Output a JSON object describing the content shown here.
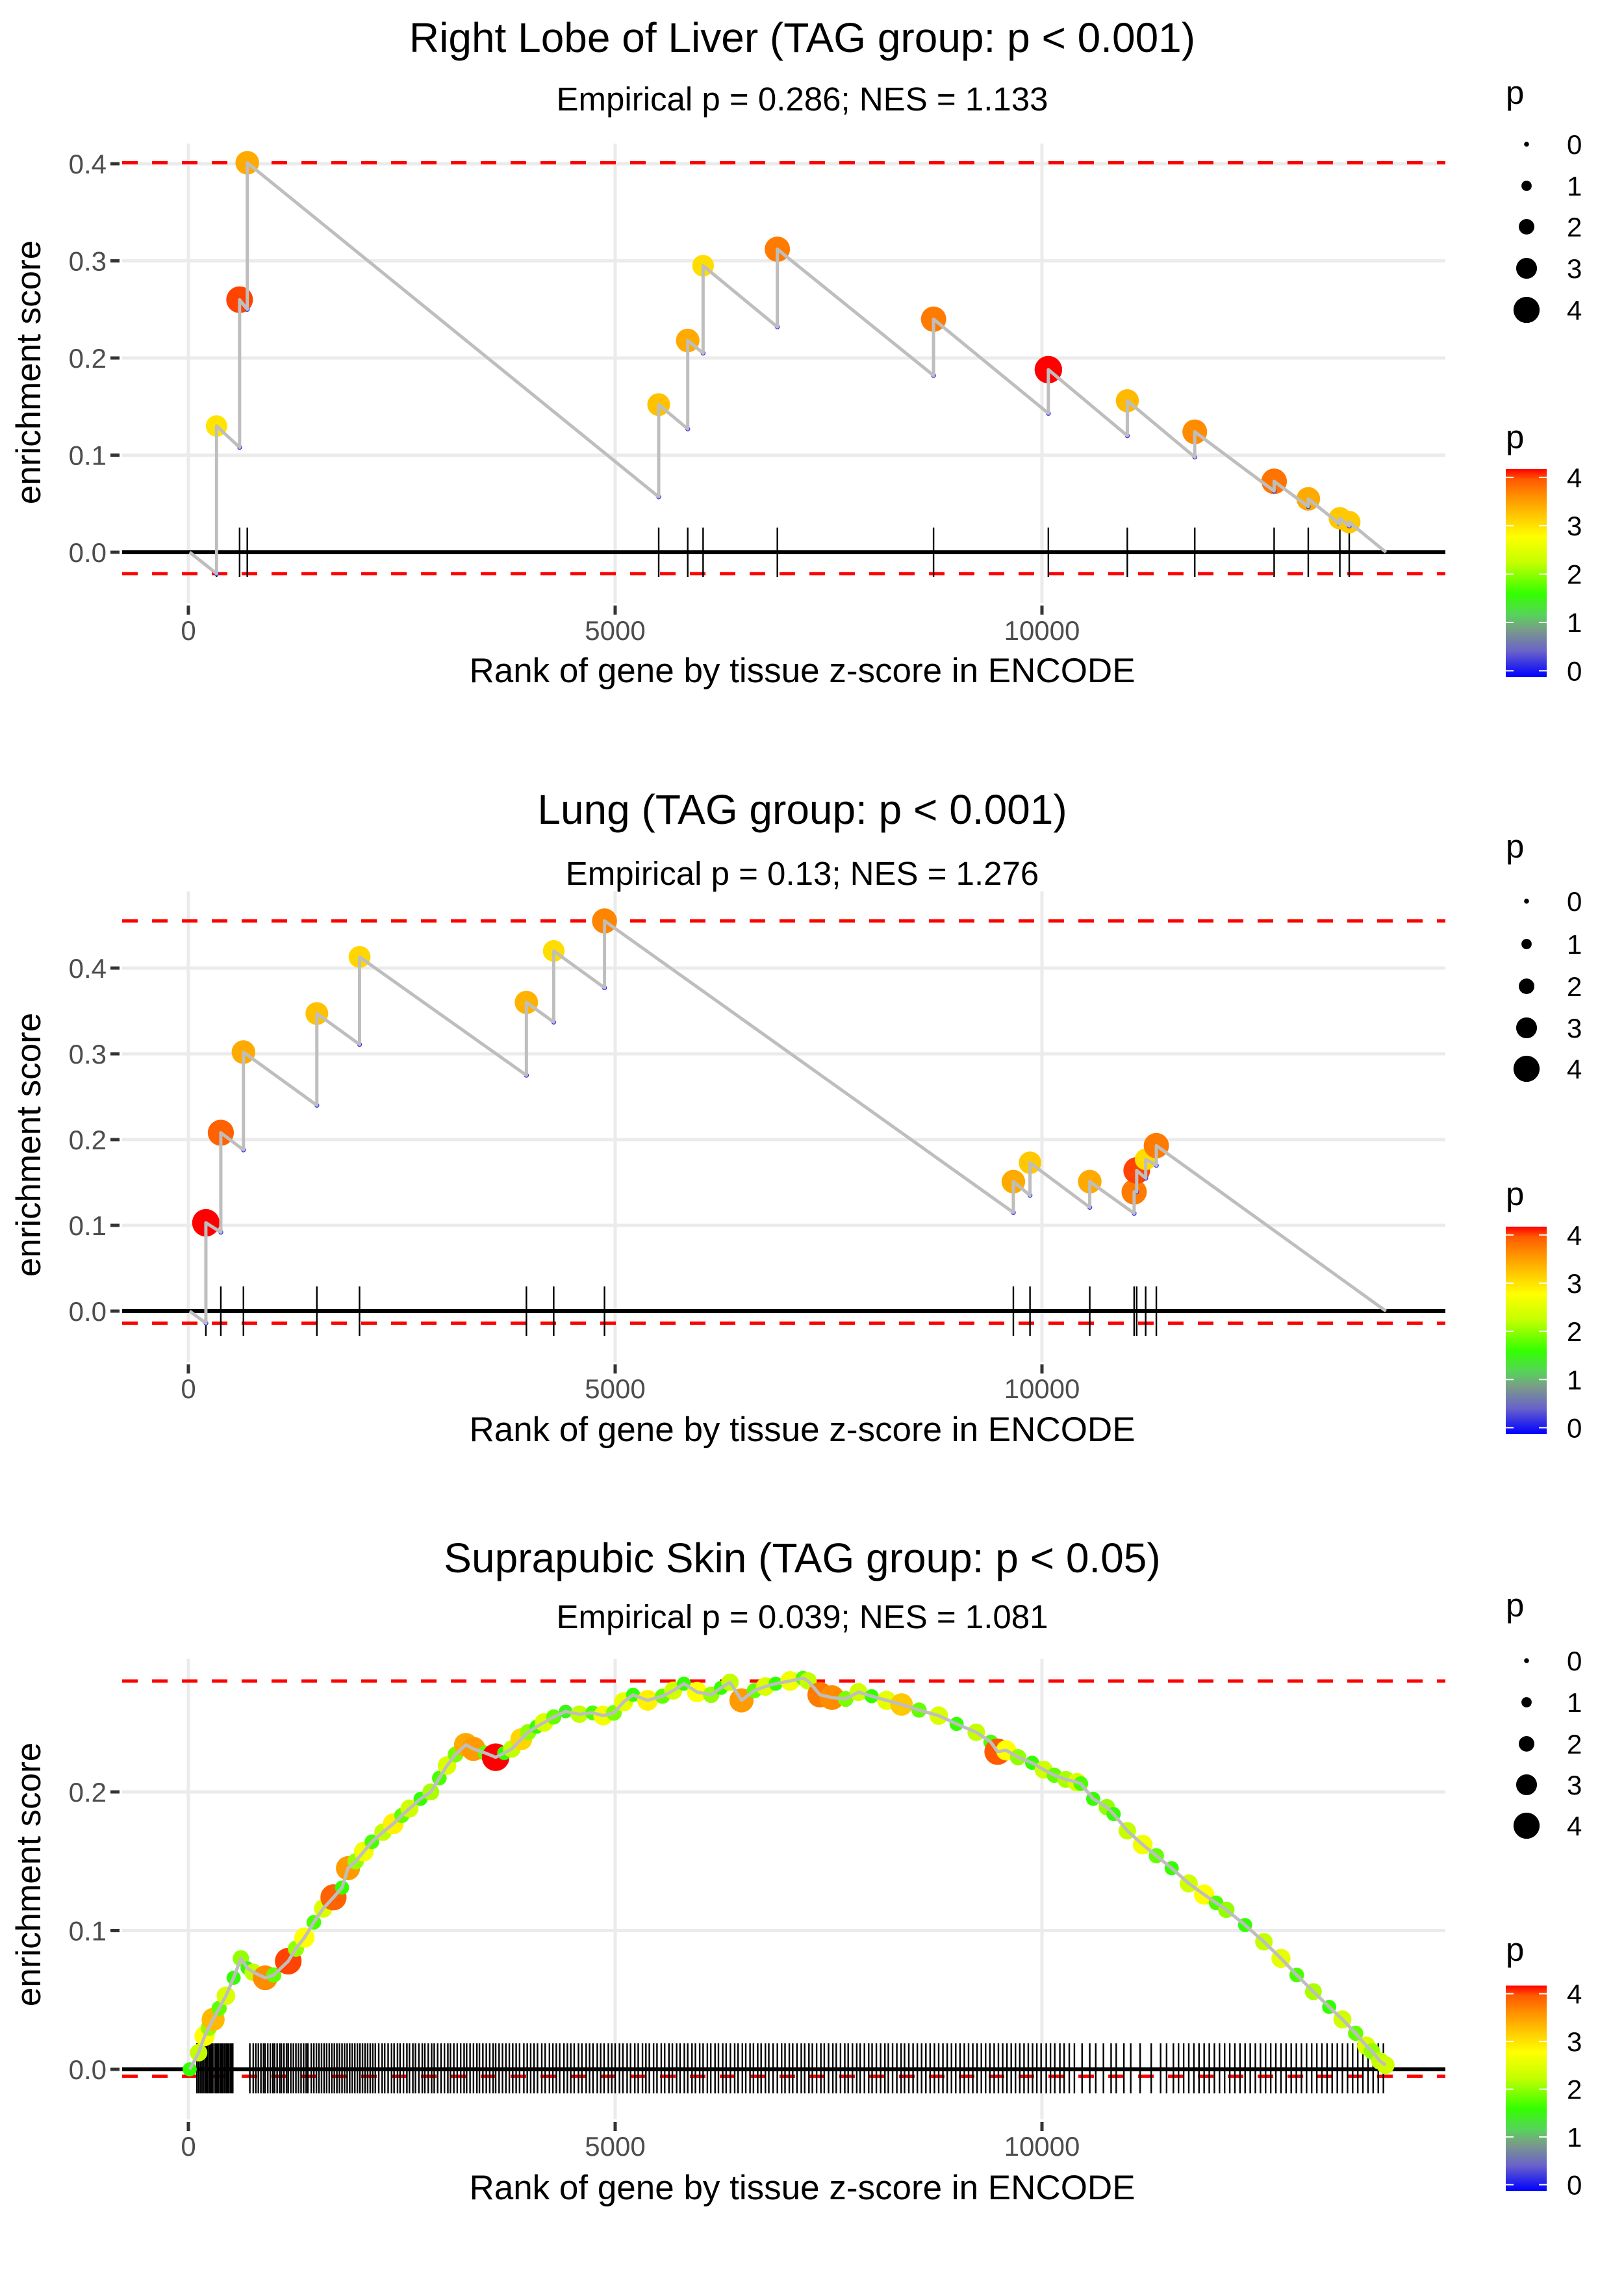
{
  "legend_shared": {
    "size_legend_title": "p",
    "size_legend_values": [
      "0",
      "1",
      "2",
      "3",
      "4"
    ],
    "color_legend_title": "p",
    "color_legend_values": [
      "4",
      "3",
      "2",
      "1",
      "0"
    ],
    "color_scale": [
      {
        "p": 0,
        "color": "#0000ff"
      },
      {
        "p": 0.5,
        "color": "#6a63c9"
      },
      {
        "p": 0.9,
        "color": "#7a9a8a"
      },
      {
        "p": 1.2,
        "color": "#57d35a"
      },
      {
        "p": 1.6,
        "color": "#33ff00"
      },
      {
        "p": 2.2,
        "color": "#c4ff00"
      },
      {
        "p": 2.7,
        "color": "#ffff00"
      },
      {
        "p": 3.1,
        "color": "#ffc800"
      },
      {
        "p": 3.5,
        "color": "#ff8c00"
      },
      {
        "p": 3.8,
        "color": "#ff5a00"
      },
      {
        "p": 4.0,
        "color": "#ff0000"
      }
    ]
  },
  "colors": {
    "bound_line": "#ff0000",
    "es_line": "#bebebe",
    "zero_line": "#000000",
    "grid": "#ebebeb"
  },
  "chart_data": [
    {
      "type": "line",
      "title": "Right Lobe of Liver (TAG group: p < 0.001)",
      "subtitle": "Empirical p = 0.286; NES = 1.133",
      "xlabel": "Rank of gene by tissue z-score in ENCODE",
      "ylabel": "enrichment score",
      "x_ticks": [
        "0",
        "5000",
        "10000"
      ],
      "x_tick_values": [
        0,
        5000,
        10000
      ],
      "y_ticks": [
        "0.0",
        "0.1",
        "0.2",
        "0.3",
        "0.4"
      ],
      "y_tick_values": [
        0,
        0.1,
        0.2,
        0.3,
        0.4
      ],
      "xlim": [
        -1200,
        14800
      ],
      "ylim": [
        -0.045,
        0.43
      ],
      "grid": true,
      "legend": "right",
      "max_es": 0.401,
      "min_es": -0.022,
      "start": [
        15,
        0
      ],
      "end": [
        14030,
        0
      ],
      "genes": [
        {
          "rank": 330,
          "es_before": -0.022,
          "es": 0.13,
          "p": 2.9
        },
        {
          "rank": 600,
          "es_before": 0.108,
          "es": 0.26,
          "p": 3.85
        },
        {
          "rank": 690,
          "es_before": 0.25,
          "es": 0.401,
          "p": 3.3
        },
        {
          "rank": 5510,
          "es_before": 0.057,
          "es": 0.152,
          "p": 3.15
        },
        {
          "rank": 5850,
          "es_before": 0.127,
          "es": 0.218,
          "p": 3.3
        },
        {
          "rank": 6030,
          "es_before": 0.205,
          "es": 0.295,
          "p": 2.95
        },
        {
          "rank": 6900,
          "es_before": 0.232,
          "es": 0.312,
          "p": 3.6
        },
        {
          "rank": 8730,
          "es_before": 0.182,
          "es": 0.24,
          "p": 3.6
        },
        {
          "rank": 10075,
          "es_before": 0.143,
          "es": 0.188,
          "p": 4.0
        },
        {
          "rank": 11000,
          "es_before": 0.12,
          "es": 0.156,
          "p": 3.2
        },
        {
          "rank": 11790,
          "es_before": 0.098,
          "es": 0.124,
          "p": 3.5
        },
        {
          "rank": 12720,
          "es_before": 0.063,
          "es": 0.073,
          "p": 3.65
        },
        {
          "rank": 13120,
          "es_before": 0.047,
          "es": 0.055,
          "p": 3.3
        },
        {
          "rank": 13490,
          "es_before": 0.029,
          "es": 0.035,
          "p": 3.1
        },
        {
          "rank": 13600,
          "es_before": 0.027,
          "es": 0.031,
          "p": 3.1
        }
      ]
    },
    {
      "type": "line",
      "title": "Lung (TAG group: p < 0.001)",
      "subtitle": "Empirical p = 0.13; NES = 1.276",
      "xlabel": "Rank of gene by tissue z-score in ENCODE",
      "ylabel": "enrichment score",
      "x_ticks": [
        "0",
        "5000",
        "10000"
      ],
      "x_tick_values": [
        0,
        5000,
        10000
      ],
      "y_ticks": [
        "0.0",
        "0.1",
        "0.2",
        "0.3",
        "0.4"
      ],
      "y_tick_values": [
        0,
        0.1,
        0.2,
        0.3,
        0.4
      ],
      "xlim": [
        -1200,
        14800
      ],
      "ylim": [
        -0.04,
        0.49
      ],
      "grid": true,
      "legend": "right",
      "max_es": 0.455,
      "min_es": -0.014,
      "start": [
        15,
        0
      ],
      "end": [
        14030,
        0
      ],
      "genes": [
        {
          "rank": 205,
          "es_before": -0.014,
          "es": 0.103,
          "p": 4.0
        },
        {
          "rank": 380,
          "es_before": 0.092,
          "es": 0.208,
          "p": 3.75
        },
        {
          "rank": 645,
          "es_before": 0.188,
          "es": 0.302,
          "p": 3.3
        },
        {
          "rank": 1505,
          "es_before": 0.24,
          "es": 0.347,
          "p": 3.15
        },
        {
          "rank": 2005,
          "es_before": 0.311,
          "es": 0.413,
          "p": 3.0
        },
        {
          "rank": 3960,
          "es_before": 0.275,
          "es": 0.36,
          "p": 3.25
        },
        {
          "rank": 4280,
          "es_before": 0.337,
          "es": 0.42,
          "p": 2.95
        },
        {
          "rank": 4875,
          "es_before": 0.377,
          "es": 0.455,
          "p": 3.55
        },
        {
          "rank": 9665,
          "es_before": 0.115,
          "es": 0.151,
          "p": 3.3
        },
        {
          "rank": 9860,
          "es_before": 0.135,
          "es": 0.173,
          "p": 3.1
        },
        {
          "rank": 10560,
          "es_before": 0.121,
          "es": 0.151,
          "p": 3.3
        },
        {
          "rank": 11080,
          "es_before": 0.114,
          "es": 0.139,
          "p": 3.6
        },
        {
          "rank": 11110,
          "es_before": 0.139,
          "es": 0.164,
          "p": 3.85
        },
        {
          "rank": 11215,
          "es_before": 0.155,
          "es": 0.177,
          "p": 2.95
        },
        {
          "rank": 11340,
          "es_before": 0.17,
          "es": 0.193,
          "p": 3.6
        }
      ]
    },
    {
      "type": "line",
      "title": "Suprapubic Skin (TAG group: p < 0.05)",
      "subtitle": "Empirical p = 0.039; NES = 1.081",
      "xlabel": "Rank of gene by tissue z-score in ENCODE",
      "ylabel": "enrichment score",
      "x_ticks": [
        "0",
        "5000",
        "10000"
      ],
      "x_tick_values": [
        0,
        5000,
        10000
      ],
      "y_ticks": [
        "0.0",
        "0.1",
        "0.2"
      ],
      "y_tick_values": [
        0,
        0.1,
        0.2
      ],
      "xlim": [
        -1200,
        14800
      ],
      "ylim": [
        -0.025,
        0.3
      ],
      "grid": true,
      "legend": "right",
      "max_es": 0.28,
      "min_es": -0.005,
      "points": [
        [
          15,
          0.0,
          1.6
        ],
        [
          120,
          0.012,
          2.2
        ],
        [
          190,
          0.024,
          2.7
        ],
        [
          240,
          0.03,
          2.0
        ],
        [
          290,
          0.036,
          3.2
        ],
        [
          360,
          0.044,
          1.8
        ],
        [
          440,
          0.053,
          2.4
        ],
        [
          530,
          0.066,
          1.6
        ],
        [
          615,
          0.08,
          2.0
        ],
        [
          690,
          0.073,
          1.5
        ],
        [
          760,
          0.07,
          2.2
        ],
        [
          900,
          0.066,
          3.5
        ],
        [
          1000,
          0.068,
          1.8
        ],
        [
          1170,
          0.078,
          3.85
        ],
        [
          1260,
          0.087,
          2.0
        ],
        [
          1360,
          0.095,
          2.7
        ],
        [
          1470,
          0.106,
          1.7
        ],
        [
          1580,
          0.116,
          2.4
        ],
        [
          1700,
          0.124,
          3.75
        ],
        [
          1800,
          0.131,
          1.6
        ],
        [
          1870,
          0.145,
          3.4
        ],
        [
          1960,
          0.15,
          2.0
        ],
        [
          2055,
          0.157,
          2.6
        ],
        [
          2150,
          0.164,
          1.7
        ],
        [
          2280,
          0.171,
          2.2
        ],
        [
          2400,
          0.177,
          2.8
        ],
        [
          2500,
          0.183,
          1.8
        ],
        [
          2590,
          0.188,
          2.3
        ],
        [
          2720,
          0.195,
          1.6
        ],
        [
          2840,
          0.2,
          2.1
        ],
        [
          2940,
          0.21,
          1.7
        ],
        [
          3030,
          0.219,
          2.4
        ],
        [
          3130,
          0.227,
          1.9
        ],
        [
          3250,
          0.234,
          3.3
        ],
        [
          3340,
          0.231,
          3.4
        ],
        [
          3480,
          0.228,
          1.8
        ],
        [
          3600,
          0.225,
          4.0
        ],
        [
          3700,
          0.228,
          1.6
        ],
        [
          3790,
          0.231,
          2.2
        ],
        [
          3900,
          0.238,
          3.0
        ],
        [
          3980,
          0.243,
          2.0
        ],
        [
          4080,
          0.247,
          1.6
        ],
        [
          4165,
          0.25,
          2.4
        ],
        [
          4280,
          0.254,
          1.8
        ],
        [
          4420,
          0.258,
          1.5
        ],
        [
          4580,
          0.256,
          2.2
        ],
        [
          4735,
          0.257,
          1.7
        ],
        [
          4860,
          0.255,
          2.6
        ],
        [
          4985,
          0.257,
          1.9
        ],
        [
          5100,
          0.265,
          2.5
        ],
        [
          5210,
          0.27,
          1.6
        ],
        [
          5380,
          0.266,
          2.8
        ],
        [
          5555,
          0.269,
          1.8
        ],
        [
          5680,
          0.273,
          2.3
        ],
        [
          5805,
          0.278,
          1.6
        ],
        [
          5960,
          0.272,
          2.7
        ],
        [
          6125,
          0.27,
          2.0
        ],
        [
          6240,
          0.275,
          1.6
        ],
        [
          6345,
          0.279,
          2.2
        ],
        [
          6480,
          0.266,
          3.4
        ],
        [
          6630,
          0.273,
          1.8
        ],
        [
          6760,
          0.276,
          2.4
        ],
        [
          6880,
          0.278,
          1.6
        ],
        [
          7050,
          0.28,
          2.6
        ],
        [
          7200,
          0.282,
          1.7
        ],
        [
          7260,
          0.28,
          2.2
        ],
        [
          7400,
          0.27,
          3.6
        ],
        [
          7540,
          0.268,
          3.5
        ],
        [
          7700,
          0.267,
          1.9
        ],
        [
          7850,
          0.272,
          2.3
        ],
        [
          8005,
          0.269,
          1.6
        ],
        [
          8180,
          0.266,
          2.5
        ],
        [
          8355,
          0.263,
          3.1
        ],
        [
          8560,
          0.259,
          1.8
        ],
        [
          8790,
          0.255,
          2.4
        ],
        [
          9000,
          0.249,
          1.6
        ],
        [
          9230,
          0.243,
          2.2
        ],
        [
          9400,
          0.236,
          1.7
        ],
        [
          9480,
          0.229,
          3.8
        ],
        [
          9580,
          0.23,
          2.7
        ],
        [
          9720,
          0.225,
          2.0
        ],
        [
          9885,
          0.221,
          1.6
        ],
        [
          10020,
          0.216,
          2.3
        ],
        [
          10145,
          0.212,
          1.8
        ],
        [
          10280,
          0.209,
          2.1
        ],
        [
          10410,
          0.207,
          2.4
        ],
        [
          10455,
          0.206,
          1.7
        ],
        [
          10600,
          0.195,
          1.6
        ],
        [
          10760,
          0.189,
          2.0
        ],
        [
          10840,
          0.184,
          1.6
        ],
        [
          11000,
          0.172,
          2.2
        ],
        [
          11180,
          0.162,
          2.6
        ],
        [
          11340,
          0.154,
          1.8
        ],
        [
          11520,
          0.145,
          1.6
        ],
        [
          11720,
          0.134,
          2.3
        ],
        [
          11900,
          0.126,
          2.7
        ],
        [
          12040,
          0.12,
          1.7
        ],
        [
          12160,
          0.115,
          2.0
        ],
        [
          12380,
          0.104,
          1.6
        ],
        [
          12600,
          0.092,
          2.2
        ],
        [
          12800,
          0.08,
          2.5
        ],
        [
          12985,
          0.068,
          1.7
        ],
        [
          13180,
          0.056,
          2.1
        ],
        [
          13365,
          0.045,
          1.6
        ],
        [
          13520,
          0.036,
          2.3
        ],
        [
          13675,
          0.026,
          1.8
        ],
        [
          13800,
          0.017,
          2.4
        ],
        [
          13865,
          0.013,
          2.0
        ],
        [
          13960,
          0.006,
          2.2
        ],
        [
          14025,
          0.003,
          2.3
        ]
      ],
      "gene_ranks_description": "dense barcode of gene ranks from ~100 to ~14000",
      "gene_ranks": [
        100,
        120,
        140,
        160,
        180,
        200,
        215,
        230,
        250,
        265,
        280,
        300,
        320,
        335,
        350,
        370,
        385,
        400,
        420,
        440,
        455,
        470,
        490,
        505,
        520,
        720,
        760,
        790,
        820,
        850,
        880,
        900,
        930,
        960,
        990,
        1010,
        1040,
        1070,
        1090,
        1120,
        1150,
        1170,
        1200,
        1230,
        1260,
        1290,
        1320,
        1350,
        1380,
        1400,
        1440,
        1470,
        1500,
        1530,
        1560,
        1590,
        1620,
        1650,
        1680,
        1710,
        1740,
        1770,
        1800,
        1830,
        1860,
        1890,
        1920,
        1950,
        1980,
        2010,
        2040,
        2070,
        2100,
        2130,
        2160,
        2190,
        2230,
        2270,
        2300,
        2340,
        2380,
        2410,
        2450,
        2480,
        2520,
        2560,
        2590,
        2630,
        2660,
        2700,
        2740,
        2770,
        2810,
        2850,
        2880,
        2920,
        2960,
        3000,
        3040,
        3070,
        3110,
        3150,
        3190,
        3230,
        3260,
        3300,
        3340,
        3380,
        3410,
        3450,
        3490,
        3530,
        3570,
        3600,
        3640,
        3680,
        3720,
        3760,
        3800,
        3840,
        3880,
        3930,
        3970,
        4010,
        4050,
        4090,
        4140,
        4180,
        4230,
        4270,
        4310,
        4350,
        4400,
        4440,
        4480,
        4520,
        4570,
        4610,
        4660,
        4700,
        4740,
        4790,
        4830,
        4870,
        4920,
        4960,
        5000,
        5050,
        5090,
        5140,
        5180,
        5230,
        5270,
        5320,
        5360,
        5400,
        5450,
        5490,
        5540,
        5580,
        5630,
        5670,
        5720,
        5760,
        5810,
        5850,
        5900,
        5940,
        5990,
        6030,
        6080,
        6120,
        6170,
        6210,
        6260,
        6300,
        6350,
        6400,
        6440,
        6490,
        6530,
        6580,
        6620,
        6670,
        6710,
        6760,
        6800,
        6850,
        6900,
        6950,
        6990,
        7040,
        7080,
        7130,
        7180,
        7220,
        7270,
        7310,
        7360,
        7410,
        7450,
        7500,
        7550,
        7590,
        7640,
        7690,
        7730,
        7780,
        7830,
        7870,
        7920,
        7970,
        8010,
        8060,
        8110,
        8160,
        8200,
        8250,
        8300,
        8350,
        8390,
        8440,
        8490,
        8540,
        8590,
        8640,
        8690,
        8740,
        8790,
        8840,
        8890,
        8940,
        8990,
        9040,
        9090,
        9140,
        9190,
        9240,
        9290,
        9340,
        9390,
        9440,
        9490,
        9540,
        9590,
        9640,
        9690,
        9740,
        9790,
        9840,
        9890,
        9940,
        9990,
        10050,
        10100,
        10150,
        10210,
        10260,
        10320,
        10380,
        10470,
        10560,
        10630,
        10720,
        10810,
        10870,
        10960,
        11040,
        11150,
        11280,
        11390,
        11460,
        11540,
        11600,
        11660,
        11720,
        11780,
        11840,
        11900,
        11960,
        12020,
        12080,
        12140,
        12200,
        12260,
        12320,
        12380,
        12440,
        12500,
        12560,
        12620,
        12680,
        12740,
        12800,
        12860,
        12920,
        12980,
        13040,
        13100,
        13160,
        13220,
        13280,
        13340,
        13400,
        13460,
        13520,
        13580,
        13640,
        13700,
        13760,
        13820,
        13880,
        13940,
        14000
      ]
    }
  ]
}
